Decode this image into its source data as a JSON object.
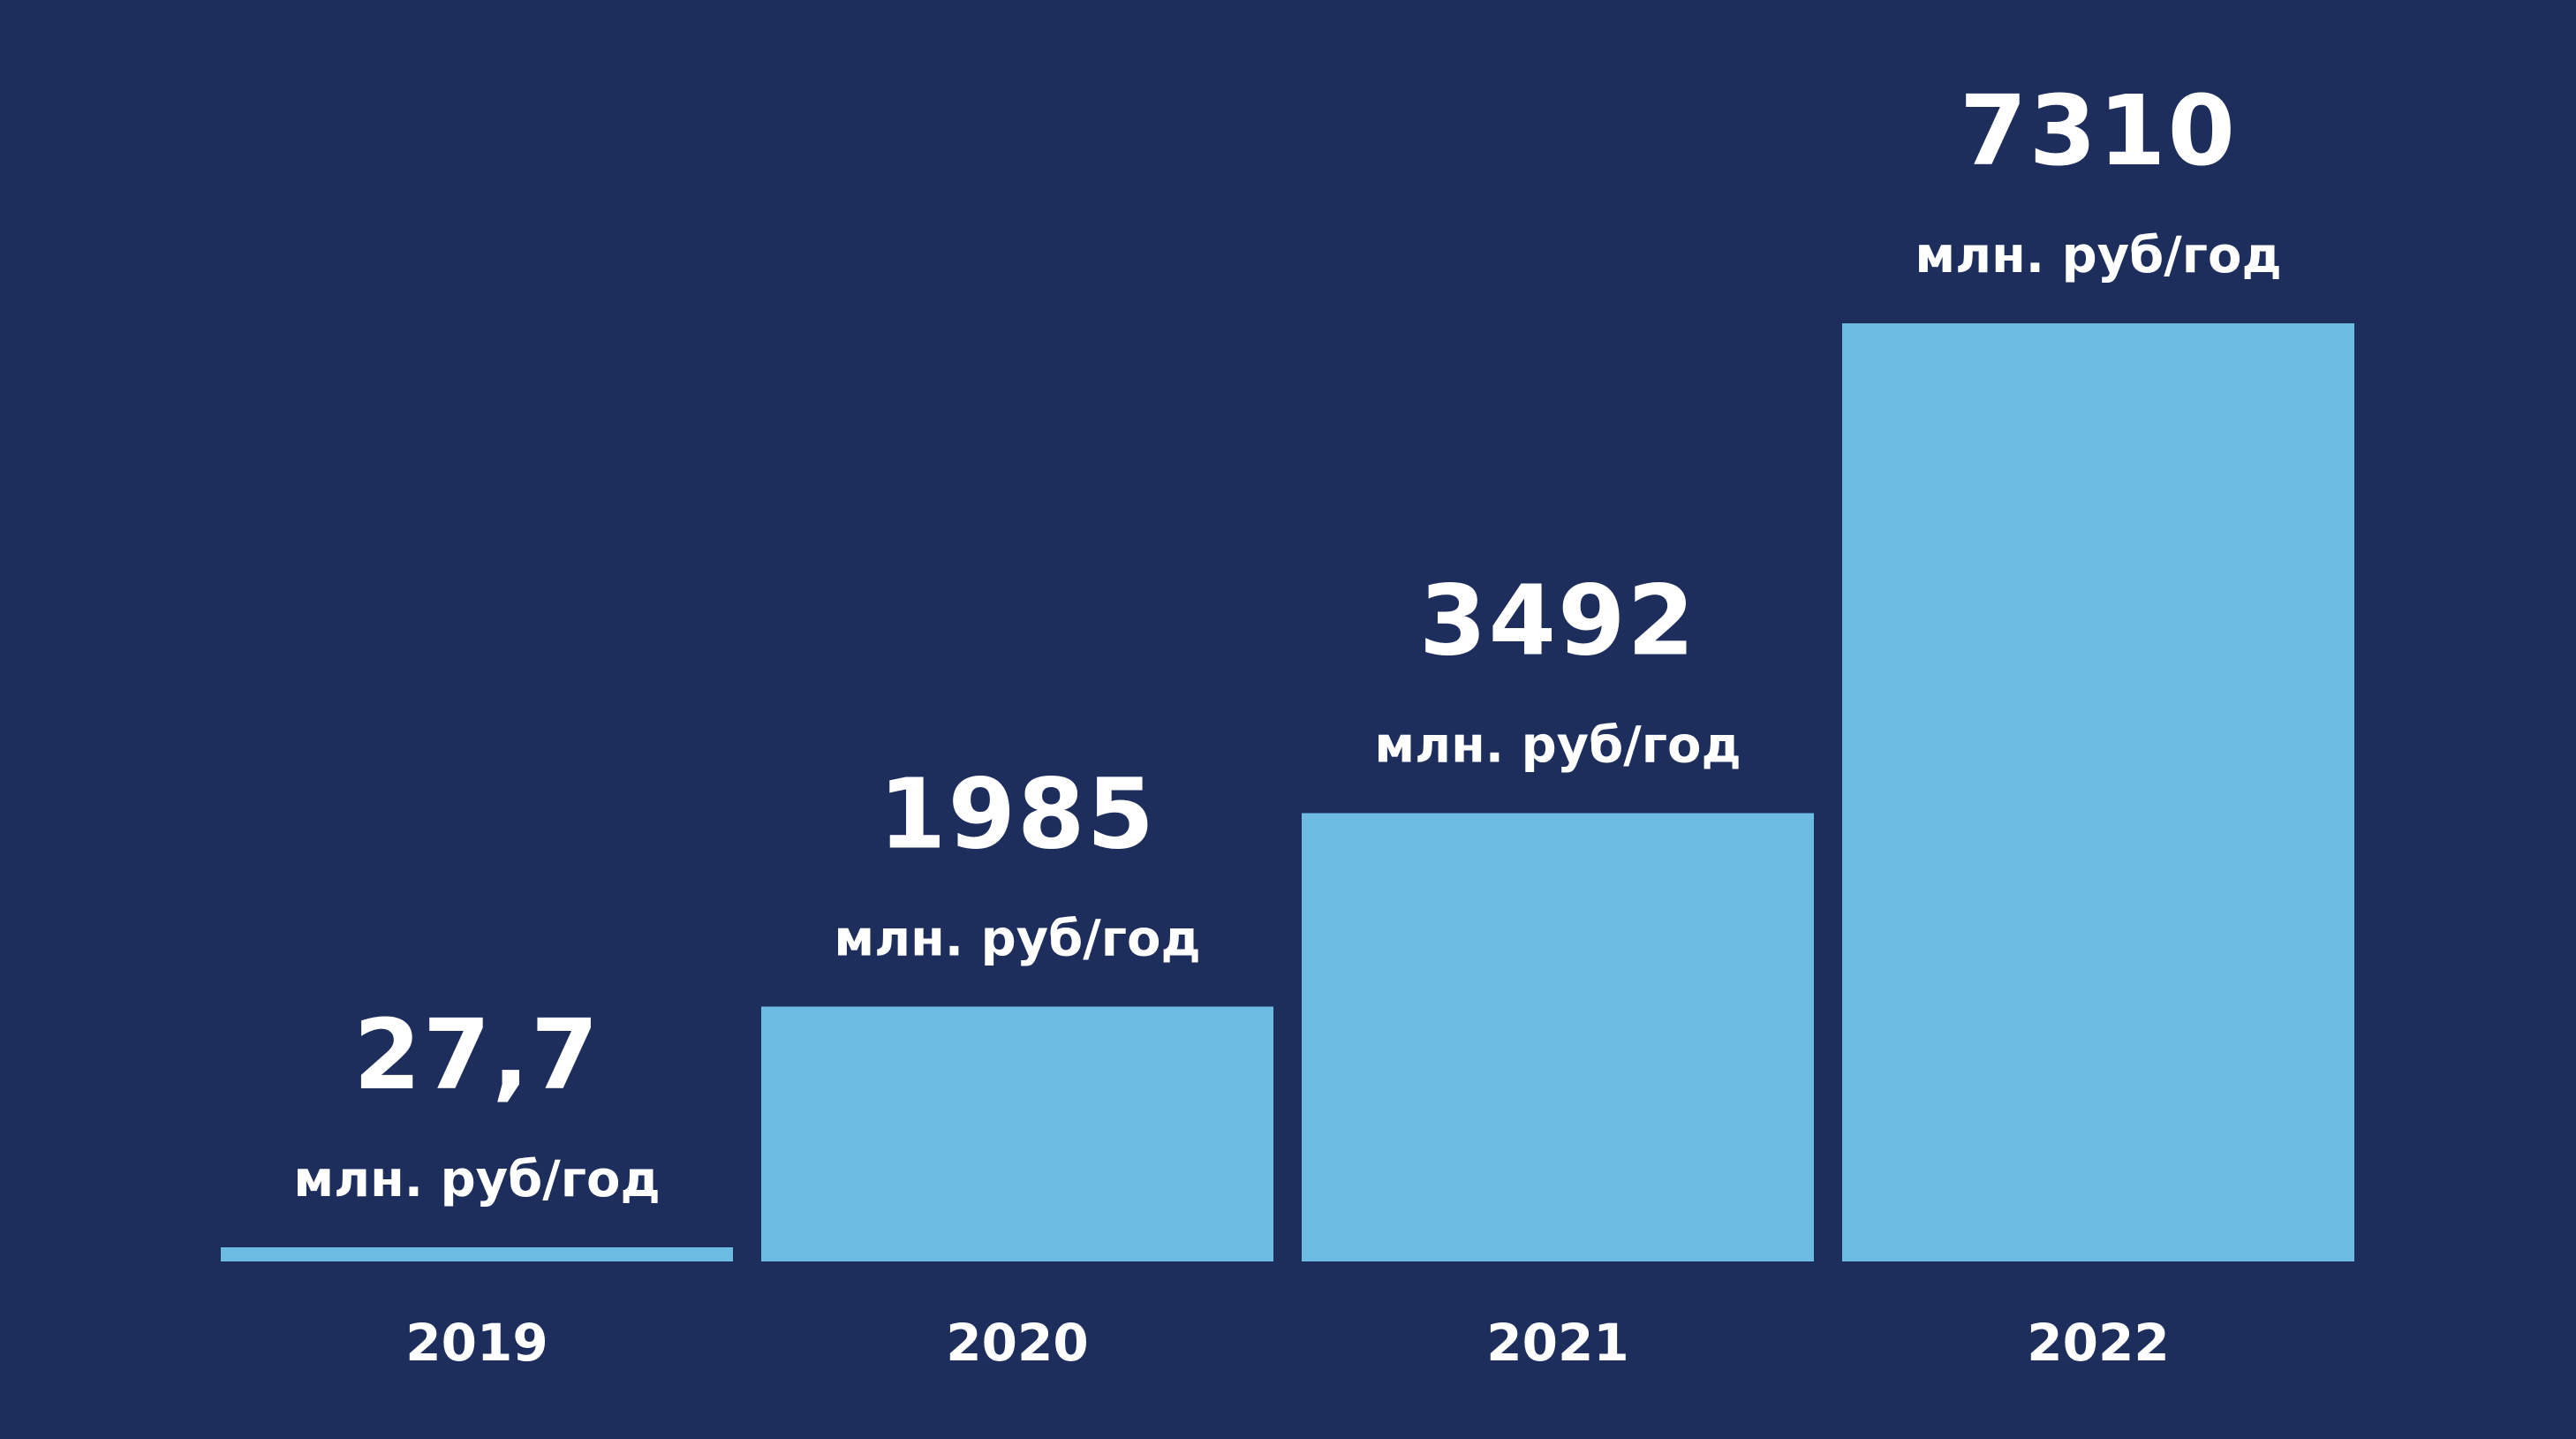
{
  "colors": {
    "background": "#1e2e5c",
    "bar": "#6bbbe2",
    "text": "#ffffff"
  },
  "chart_data": {
    "type": "bar",
    "title": "",
    "xlabel": "",
    "ylabel": "",
    "categories": [
      "2019",
      "2020",
      "2021",
      "2022"
    ],
    "values": [
      27.7,
      1985,
      3492,
      7310
    ],
    "value_labels": [
      "27,7",
      "1985",
      "3492",
      "7310"
    ],
    "unit_label": "млн. руб/год",
    "ylim": [
      0,
      7310
    ],
    "grid": false,
    "legend": "none"
  }
}
